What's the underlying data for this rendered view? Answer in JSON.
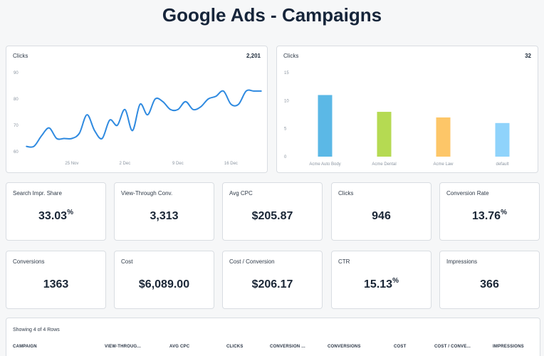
{
  "page": {
    "title": "Google Ads - Campaigns"
  },
  "line_card": {
    "label": "Clicks",
    "total": "2,201"
  },
  "bar_card": {
    "label": "Clicks",
    "total": "32"
  },
  "kpis_row1": [
    {
      "label": "Search Impr. Share",
      "value": "33.03",
      "suffix": "%"
    },
    {
      "label": "View-Through Conv.",
      "value": "3,313",
      "suffix": ""
    },
    {
      "label": "Avg CPC",
      "value": "$205.87",
      "suffix": ""
    },
    {
      "label": "Clicks",
      "value": "946",
      "suffix": ""
    },
    {
      "label": "Conversion Rate",
      "value": "13.76",
      "suffix": "%"
    }
  ],
  "kpis_row2": [
    {
      "label": "Conversions",
      "value": "1363",
      "suffix": ""
    },
    {
      "label": "Cost",
      "value": "$6,089.00",
      "suffix": ""
    },
    {
      "label": "Cost / Conversion",
      "value": "$206.17",
      "suffix": ""
    },
    {
      "label": "CTR",
      "value": "15.13",
      "suffix": "%"
    },
    {
      "label": "Impressions",
      "value": "366",
      "suffix": ""
    }
  ],
  "table": {
    "caption": "Showing 4 of 4 Rows",
    "columns": [
      "CAMPAIGN",
      "VIEW-THROUG...",
      "AVG CPC",
      "CLICKS",
      "CONVERSION ...",
      "CONVERSIONS",
      "COST",
      "COST / CONVE...",
      "IMPRESSIONS"
    ]
  },
  "chart_data": [
    {
      "type": "line",
      "title": "Clicks",
      "x_ticks": [
        "25 Nov",
        "2 Dec",
        "9 Dec",
        "16 Dec"
      ],
      "x": [
        "19 Nov",
        "20 Nov",
        "21 Nov",
        "22 Nov",
        "23 Nov",
        "24 Nov",
        "25 Nov",
        "26 Nov",
        "27 Nov",
        "28 Nov",
        "29 Nov",
        "30 Nov",
        "1 Dec",
        "2 Dec",
        "3 Dec",
        "4 Dec",
        "5 Dec",
        "6 Dec",
        "7 Dec",
        "8 Dec",
        "9 Dec",
        "10 Dec",
        "11 Dec",
        "12 Dec",
        "13 Dec",
        "14 Dec",
        "15 Dec",
        "16 Dec",
        "17 Dec",
        "18 Dec",
        "19 Dec",
        "20 Dec"
      ],
      "values": [
        62,
        62,
        66,
        69,
        65,
        65,
        65,
        67,
        74,
        68,
        65,
        72,
        70,
        76,
        68,
        78,
        74,
        80,
        79,
        76,
        76,
        79,
        76,
        77,
        80,
        81,
        83,
        78,
        78,
        83,
        83,
        83
      ],
      "ylim": [
        60,
        90
      ],
      "y_ticks": [
        60,
        70,
        80,
        90
      ],
      "color": "#2f8ae0"
    },
    {
      "type": "bar",
      "title": "Clicks",
      "categories": [
        "Acme Auto Body",
        "Acme Dental",
        "Acme Law",
        "default"
      ],
      "values": [
        11,
        8,
        7,
        6
      ],
      "colors": [
        "#5bb8e6",
        "#b5da52",
        "#fdc668",
        "#8fd3fb"
      ],
      "ylim": [
        0,
        15
      ],
      "y_ticks": [
        0,
        5,
        10,
        15
      ]
    }
  ]
}
